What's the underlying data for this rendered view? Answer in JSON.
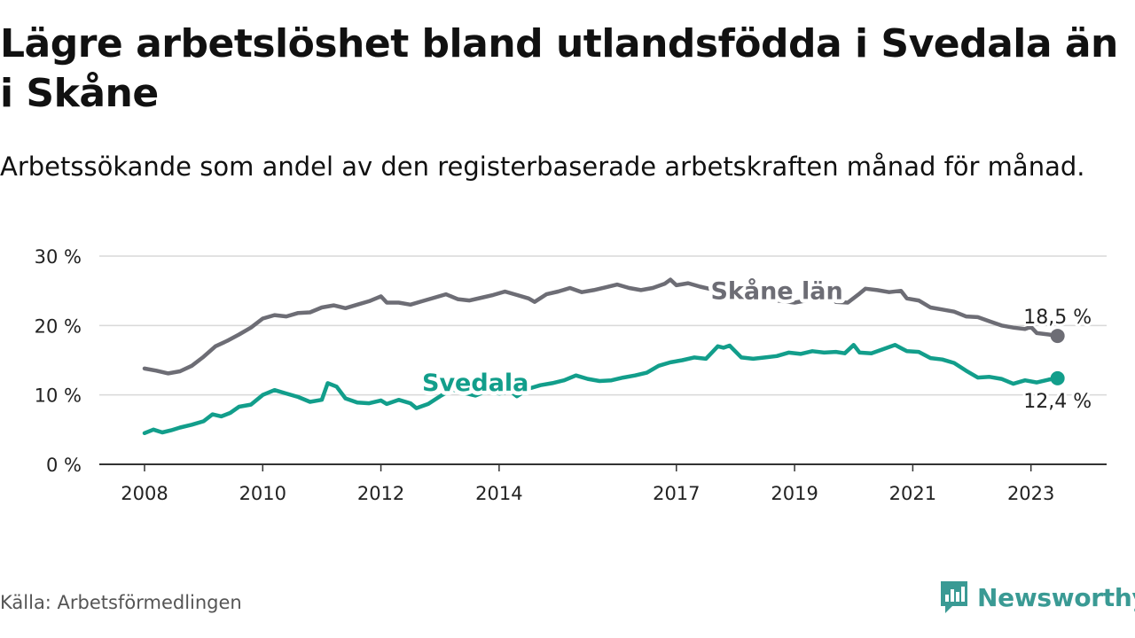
{
  "chart_data": {
    "type": "line",
    "title": "Lägre arbetslöshet bland utlandsfödda i Svedala än i Skåne",
    "subtitle": "Arbetssökande som andel av den registerbaserade arbetskraften månad för månad.",
    "source": "Källa: Arbetsförmedlingen",
    "ylim": [
      0,
      30
    ],
    "xlim": [
      2008,
      2023.5
    ],
    "y_ticks": [
      {
        "value": 0,
        "label": "0 %"
      },
      {
        "value": 10,
        "label": "10 %"
      },
      {
        "value": 20,
        "label": "20 %"
      },
      {
        "value": 30,
        "label": "30 %"
      }
    ],
    "x_ticks": [
      {
        "value": 2008,
        "label": "2008"
      },
      {
        "value": 2010,
        "label": "2010"
      },
      {
        "value": 2012,
        "label": "2012"
      },
      {
        "value": 2014,
        "label": "2014"
      },
      {
        "value": 2017,
        "label": "2017"
      },
      {
        "value": 2019,
        "label": "2019"
      },
      {
        "value": 2021,
        "label": "2021"
      },
      {
        "value": 2023,
        "label": "2023"
      }
    ],
    "series": [
      {
        "name": "Skåne län",
        "color": "#6d6d75",
        "end_label": "18,5 %",
        "points": [
          [
            2008,
            13.8
          ],
          [
            2008.2,
            13.5
          ],
          [
            2008.4,
            13.1
          ],
          [
            2008.6,
            13.4
          ],
          [
            2008.8,
            14.2
          ],
          [
            2009,
            15.5
          ],
          [
            2009.2,
            17.0
          ],
          [
            2009.4,
            17.8
          ],
          [
            2009.6,
            18.7
          ],
          [
            2009.8,
            19.7
          ],
          [
            2010,
            21.0
          ],
          [
            2010.2,
            21.5
          ],
          [
            2010.4,
            21.3
          ],
          [
            2010.6,
            21.8
          ],
          [
            2010.8,
            21.9
          ],
          [
            2011,
            22.6
          ],
          [
            2011.2,
            22.9
          ],
          [
            2011.4,
            22.5
          ],
          [
            2011.6,
            23.0
          ],
          [
            2011.8,
            23.5
          ],
          [
            2012,
            24.2
          ],
          [
            2012.1,
            23.3
          ],
          [
            2012.3,
            23.3
          ],
          [
            2012.5,
            23.0
          ],
          [
            2012.7,
            23.5
          ],
          [
            2012.9,
            24.0
          ],
          [
            2013.1,
            24.5
          ],
          [
            2013.3,
            23.8
          ],
          [
            2013.5,
            23.6
          ],
          [
            2013.7,
            24.0
          ],
          [
            2013.9,
            24.4
          ],
          [
            2014.1,
            24.9
          ],
          [
            2014.3,
            24.4
          ],
          [
            2014.5,
            23.9
          ],
          [
            2014.6,
            23.4
          ],
          [
            2014.8,
            24.5
          ],
          [
            2015,
            24.9
          ],
          [
            2015.2,
            25.4
          ],
          [
            2015.4,
            24.8
          ],
          [
            2015.6,
            25.1
          ],
          [
            2015.8,
            25.5
          ],
          [
            2016,
            25.9
          ],
          [
            2016.2,
            25.4
          ],
          [
            2016.4,
            25.1
          ],
          [
            2016.6,
            25.4
          ],
          [
            2016.8,
            26.0
          ],
          [
            2016.9,
            26.6
          ],
          [
            2017,
            25.8
          ],
          [
            2017.2,
            26.1
          ],
          [
            2017.4,
            25.6
          ],
          [
            2017.6,
            25.2
          ],
          [
            2017.8,
            24.8
          ],
          [
            2018,
            24.5
          ],
          [
            2018.2,
            24.2
          ],
          [
            2018.4,
            23.9
          ],
          [
            2018.6,
            23.7
          ],
          [
            2018.8,
            23.5
          ],
          [
            2019,
            23.3
          ],
          [
            2019.2,
            23.6
          ],
          [
            2019.4,
            24.0
          ],
          [
            2019.6,
            24.3
          ],
          [
            2019.7,
            23.4
          ],
          [
            2019.9,
            23.3
          ],
          [
            2020.1,
            24.6
          ],
          [
            2020.2,
            25.3
          ],
          [
            2020.4,
            25.1
          ],
          [
            2020.6,
            24.8
          ],
          [
            2020.8,
            25.0
          ],
          [
            2020.9,
            23.9
          ],
          [
            2021.1,
            23.6
          ],
          [
            2021.3,
            22.6
          ],
          [
            2021.5,
            22.3
          ],
          [
            2021.7,
            22.0
          ],
          [
            2021.9,
            21.3
          ],
          [
            2022.1,
            21.2
          ],
          [
            2022.3,
            20.6
          ],
          [
            2022.5,
            20.0
          ],
          [
            2022.7,
            19.7
          ],
          [
            2022.9,
            19.5
          ],
          [
            2023,
            19.8
          ],
          [
            2023.1,
            18.9
          ],
          [
            2023.3,
            18.7
          ],
          [
            2023.45,
            18.5
          ]
        ]
      },
      {
        "name": "Svedala",
        "color": "#129e8b",
        "end_label": "12,4 %",
        "points": [
          [
            2008,
            4.5
          ],
          [
            2008.15,
            5.0
          ],
          [
            2008.3,
            4.6
          ],
          [
            2008.45,
            4.9
          ],
          [
            2008.6,
            5.3
          ],
          [
            2008.8,
            5.7
          ],
          [
            2009,
            6.2
          ],
          [
            2009.15,
            7.2
          ],
          [
            2009.3,
            6.9
          ],
          [
            2009.45,
            7.4
          ],
          [
            2009.6,
            8.3
          ],
          [
            2009.8,
            8.6
          ],
          [
            2010,
            10.0
          ],
          [
            2010.2,
            10.7
          ],
          [
            2010.4,
            10.2
          ],
          [
            2010.6,
            9.7
          ],
          [
            2010.8,
            9.0
          ],
          [
            2011,
            9.3
          ],
          [
            2011.1,
            11.7
          ],
          [
            2011.25,
            11.2
          ],
          [
            2011.4,
            9.5
          ],
          [
            2011.6,
            8.9
          ],
          [
            2011.8,
            8.8
          ],
          [
            2012,
            9.2
          ],
          [
            2012.1,
            8.7
          ],
          [
            2012.3,
            9.3
          ],
          [
            2012.5,
            8.8
          ],
          [
            2012.6,
            8.1
          ],
          [
            2012.8,
            8.7
          ],
          [
            2013,
            9.8
          ],
          [
            2013.2,
            10.8
          ],
          [
            2013.4,
            10.3
          ],
          [
            2013.6,
            9.9
          ],
          [
            2013.8,
            10.6
          ],
          [
            2014,
            10.2
          ],
          [
            2014.2,
            10.5
          ],
          [
            2014.3,
            9.8
          ],
          [
            2014.5,
            10.9
          ],
          [
            2014.7,
            11.4
          ],
          [
            2014.9,
            11.7
          ],
          [
            2015.1,
            12.1
          ],
          [
            2015.3,
            12.8
          ],
          [
            2015.5,
            12.3
          ],
          [
            2015.7,
            12.0
          ],
          [
            2015.9,
            12.1
          ],
          [
            2016.1,
            12.5
          ],
          [
            2016.3,
            12.8
          ],
          [
            2016.5,
            13.2
          ],
          [
            2016.7,
            14.2
          ],
          [
            2016.9,
            14.7
          ],
          [
            2017.1,
            15.0
          ],
          [
            2017.3,
            15.4
          ],
          [
            2017.5,
            15.2
          ],
          [
            2017.6,
            16.1
          ],
          [
            2017.7,
            17.0
          ],
          [
            2017.8,
            16.8
          ],
          [
            2017.9,
            17.1
          ],
          [
            2018.1,
            15.4
          ],
          [
            2018.3,
            15.2
          ],
          [
            2018.5,
            15.4
          ],
          [
            2018.7,
            15.6
          ],
          [
            2018.9,
            16.1
          ],
          [
            2019.1,
            15.9
          ],
          [
            2019.3,
            16.3
          ],
          [
            2019.5,
            16.1
          ],
          [
            2019.7,
            16.2
          ],
          [
            2019.85,
            16.0
          ],
          [
            2020,
            17.2
          ],
          [
            2020.1,
            16.1
          ],
          [
            2020.3,
            16.0
          ],
          [
            2020.5,
            16.6
          ],
          [
            2020.7,
            17.2
          ],
          [
            2020.9,
            16.3
          ],
          [
            2021.1,
            16.2
          ],
          [
            2021.3,
            15.3
          ],
          [
            2021.5,
            15.1
          ],
          [
            2021.7,
            14.6
          ],
          [
            2021.9,
            13.5
          ],
          [
            2022.1,
            12.5
          ],
          [
            2022.3,
            12.6
          ],
          [
            2022.5,
            12.3
          ],
          [
            2022.7,
            11.6
          ],
          [
            2022.9,
            12.1
          ],
          [
            2023.1,
            11.8
          ],
          [
            2023.3,
            12.2
          ],
          [
            2023.45,
            12.4
          ]
        ]
      }
    ],
    "inline_labels": [
      {
        "series": "Skåne län",
        "text": "Skåne län",
        "x": 2018.7,
        "y": 25.1
      },
      {
        "series": "Svedala",
        "text": "Svedala",
        "x": 2013.6,
        "y": 11.9
      }
    ],
    "end_labels": [
      {
        "series": "Skåne län",
        "text": "18,5 %",
        "x": 2023.45,
        "y": 21.3
      },
      {
        "series": "Svedala",
        "text": "12,4 %",
        "x": 2023.45,
        "y": 9.2
      }
    ]
  },
  "brand": {
    "name": "Newsworthy",
    "color": "#3a9a94"
  }
}
